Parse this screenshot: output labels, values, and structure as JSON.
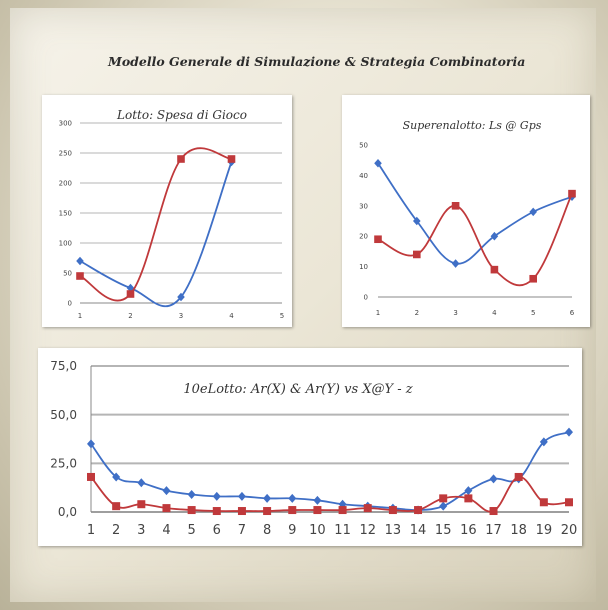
{
  "header": {
    "title": "Modello Generale di Simulazione & Strategia Combinatoria"
  },
  "chart_data": [
    {
      "type": "line",
      "title": "Lotto: Spesa di Gioco",
      "x": [
        1,
        2,
        3,
        4
      ],
      "xticks": [
        1,
        2,
        3,
        4,
        5
      ],
      "yticks": [
        0,
        50,
        100,
        150,
        200,
        250,
        300
      ],
      "xlim": [
        1,
        5
      ],
      "ylim": [
        0,
        300
      ],
      "series": [
        {
          "color": "#3f6fc6",
          "marker": "diamond",
          "values": [
            70,
            25,
            10,
            235
          ]
        },
        {
          "color": "#c0393b",
          "marker": "square",
          "values": [
            45,
            15,
            240,
            240
          ]
        }
      ]
    },
    {
      "type": "line",
      "title": "Superenalotto: Ls @ Gps",
      "x": [
        1,
        2,
        3,
        4,
        5,
        6
      ],
      "xticks": [
        1,
        2,
        3,
        4,
        5,
        6
      ],
      "yticks": [
        0,
        10,
        20,
        30,
        40,
        50
      ],
      "xlim": [
        1,
        6
      ],
      "ylim": [
        0,
        50
      ],
      "series": [
        {
          "color": "#3f6fc6",
          "marker": "diamond",
          "values": [
            44,
            25,
            11,
            20,
            28,
            33
          ]
        },
        {
          "color": "#c0393b",
          "marker": "square",
          "values": [
            19,
            14,
            30,
            9,
            6,
            34
          ]
        }
      ]
    },
    {
      "type": "line",
      "title": "10eLotto: Ar(X) & Ar(Y) vs X@Y - z",
      "x": [
        1,
        2,
        3,
        4,
        5,
        6,
        7,
        8,
        9,
        10,
        11,
        12,
        13,
        14,
        15,
        16,
        17,
        18,
        19,
        20
      ],
      "xticks": [
        1,
        2,
        3,
        4,
        5,
        6,
        7,
        8,
        9,
        10,
        11,
        12,
        13,
        14,
        15,
        16,
        17,
        18,
        19,
        20
      ],
      "yticks": [
        "0,0",
        "25,0",
        "50,0",
        "75,0"
      ],
      "ytick_values": [
        0,
        25,
        50,
        75
      ],
      "xlim": [
        1,
        20
      ],
      "ylim": [
        0,
        75
      ],
      "series": [
        {
          "color": "#3f6fc6",
          "marker": "diamond",
          "values": [
            35,
            18,
            15,
            11,
            9,
            8,
            8,
            7,
            7,
            6,
            4,
            3,
            2,
            1,
            3,
            11,
            17,
            17,
            36,
            41
          ]
        },
        {
          "color": "#c0393b",
          "marker": "square",
          "values": [
            18,
            3,
            4,
            2,
            1,
            0.5,
            0.5,
            0.5,
            1,
            1,
            1,
            2,
            1,
            1,
            7,
            7,
            0.5,
            18,
            5,
            5
          ]
        }
      ]
    }
  ]
}
